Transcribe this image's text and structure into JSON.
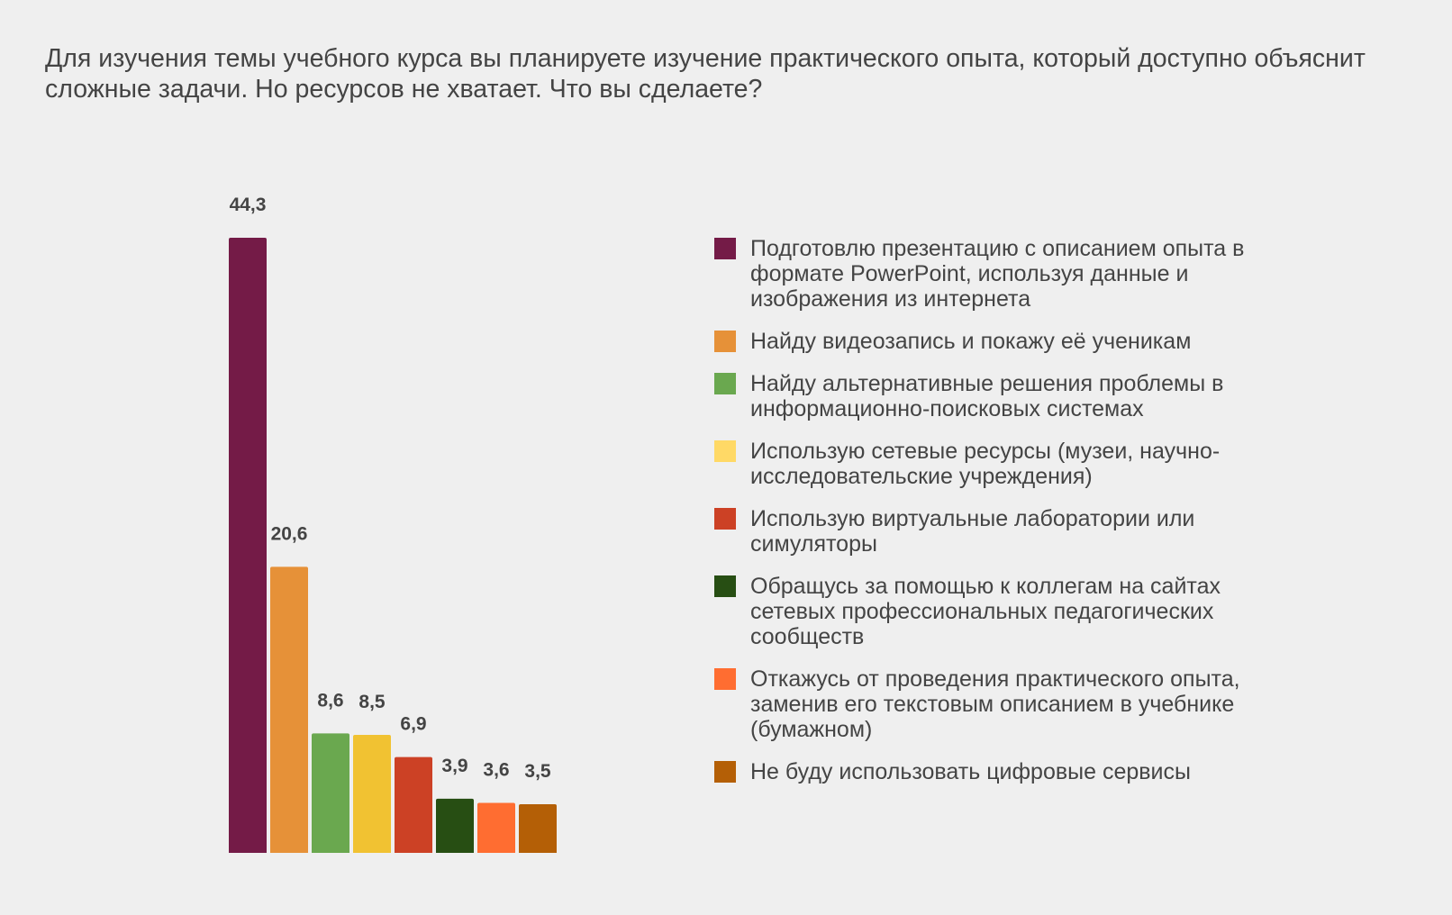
{
  "chart_data": {
    "type": "bar",
    "title": "Для изучения темы учебного курса вы планируете изучение практического опыта, который доступно объяснит сложные задачи. Но ресурсов не хватает. Что вы сделаете?",
    "categories": [
      "Подготовлю презентацию с описанием опыта в формате PowerPoint, используя данные и изображения из интернета",
      "Найду видеозапись и покажу её ученикам",
      "Найду альтернативные решения проблемы в информационно-поисковых системах",
      "Использую сетевые ресурсы (музеи, научно-исследовательские учреждения)",
      "Использую виртуальные лаборатории или симуляторы",
      "Обращусь за помощью к коллегам на сайтах сетевых профессиональных педагогических сообществ",
      "Откажусь от проведения практического опыта, заменив его текстовым описанием в учебнике (бумажном)",
      "Не буду использовать цифровые сервисы"
    ],
    "values": [
      44.3,
      20.6,
      8.6,
      8.5,
      6.9,
      3.9,
      3.6,
      3.5
    ],
    "value_labels": [
      "44,3",
      "20,6",
      "8,6",
      "8,5",
      "6,9",
      "3,9",
      "3,6",
      "3,5"
    ],
    "colors": [
      "#741b47",
      "#e69138",
      "#6aa84f",
      "#f1c232",
      "#cc4125",
      "#274e13",
      "#ff6d31",
      "#b45f06"
    ],
    "legend_colors": [
      "#741b47",
      "#e69138",
      "#6aa84f",
      "#ffd966",
      "#cc4125",
      "#274e13",
      "#ff6d31",
      "#b45f06"
    ],
    "xlabel": "",
    "ylabel": "",
    "ylim": [
      0,
      44.3
    ],
    "grid": false,
    "legend_position": "right"
  }
}
